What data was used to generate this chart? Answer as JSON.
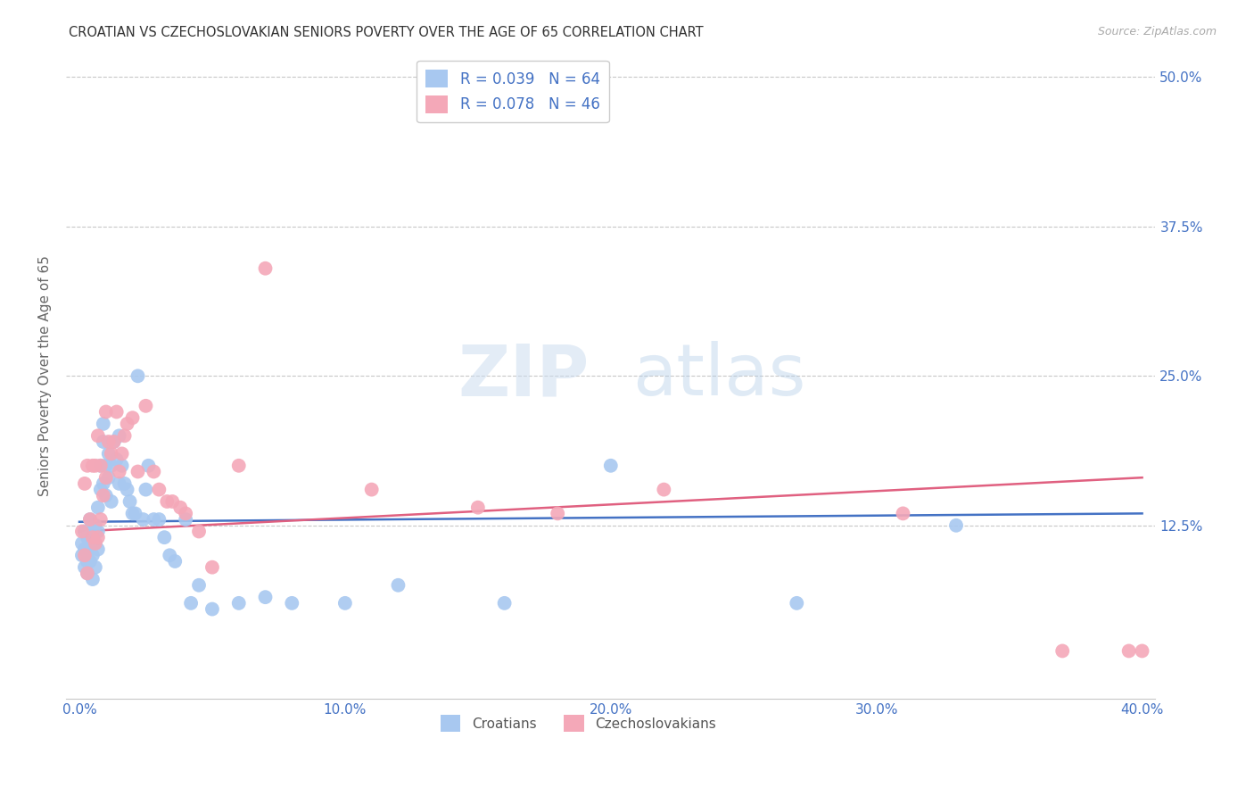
{
  "title": "CROATIAN VS CZECHOSLOVAKIAN SENIORS POVERTY OVER THE AGE OF 65 CORRELATION CHART",
  "source": "Source: ZipAtlas.com",
  "ylabel": "Seniors Poverty Over the Age of 65",
  "xlabel_ticks": [
    "0.0%",
    "10.0%",
    "20.0%",
    "30.0%",
    "40.0%"
  ],
  "xlabel_vals": [
    0.0,
    0.1,
    0.2,
    0.3,
    0.4
  ],
  "ytick_labels": [
    "12.5%",
    "25.0%",
    "37.5%",
    "50.0%"
  ],
  "ytick_vals": [
    0.125,
    0.25,
    0.375,
    0.5
  ],
  "xlim": [
    -0.005,
    0.405
  ],
  "ylim": [
    -0.02,
    0.52
  ],
  "croatian_R": 0.039,
  "croatian_N": 64,
  "czechoslovakian_R": 0.078,
  "czechoslovakian_N": 46,
  "croatian_color": "#a8c8f0",
  "czechoslovakian_color": "#f4a8b8",
  "croatian_line_color": "#4472c4",
  "czechoslovakian_line_color": "#e06080",
  "background_color": "#ffffff",
  "grid_color": "#c8c8c8",
  "label_color": "#4472c4",
  "cr_trend_start": 0.128,
  "cr_trend_end": 0.135,
  "cz_trend_start": 0.12,
  "cz_trend_end": 0.165,
  "croatians_x": [
    0.001,
    0.001,
    0.002,
    0.002,
    0.002,
    0.003,
    0.003,
    0.003,
    0.004,
    0.004,
    0.004,
    0.004,
    0.005,
    0.005,
    0.005,
    0.006,
    0.006,
    0.006,
    0.007,
    0.007,
    0.007,
    0.008,
    0.008,
    0.009,
    0.009,
    0.009,
    0.01,
    0.01,
    0.011,
    0.011,
    0.012,
    0.012,
    0.013,
    0.014,
    0.015,
    0.015,
    0.016,
    0.017,
    0.018,
    0.019,
    0.02,
    0.021,
    0.022,
    0.024,
    0.025,
    0.026,
    0.028,
    0.03,
    0.032,
    0.034,
    0.036,
    0.04,
    0.042,
    0.045,
    0.05,
    0.06,
    0.07,
    0.08,
    0.1,
    0.12,
    0.16,
    0.2,
    0.27,
    0.33
  ],
  "croatians_y": [
    0.1,
    0.11,
    0.09,
    0.105,
    0.12,
    0.085,
    0.095,
    0.115,
    0.095,
    0.105,
    0.115,
    0.13,
    0.08,
    0.1,
    0.12,
    0.09,
    0.11,
    0.125,
    0.105,
    0.12,
    0.14,
    0.155,
    0.175,
    0.16,
    0.195,
    0.21,
    0.15,
    0.175,
    0.165,
    0.185,
    0.145,
    0.175,
    0.195,
    0.18,
    0.16,
    0.2,
    0.175,
    0.16,
    0.155,
    0.145,
    0.135,
    0.135,
    0.25,
    0.13,
    0.155,
    0.175,
    0.13,
    0.13,
    0.115,
    0.1,
    0.095,
    0.13,
    0.06,
    0.075,
    0.055,
    0.06,
    0.065,
    0.06,
    0.06,
    0.075,
    0.06,
    0.175,
    0.06,
    0.125
  ],
  "czechoslovakians_x": [
    0.001,
    0.002,
    0.002,
    0.003,
    0.003,
    0.004,
    0.005,
    0.005,
    0.006,
    0.006,
    0.007,
    0.007,
    0.008,
    0.008,
    0.009,
    0.01,
    0.01,
    0.011,
    0.012,
    0.013,
    0.014,
    0.015,
    0.016,
    0.017,
    0.018,
    0.02,
    0.022,
    0.025,
    0.028,
    0.03,
    0.033,
    0.035,
    0.038,
    0.04,
    0.045,
    0.05,
    0.06,
    0.07,
    0.11,
    0.15,
    0.18,
    0.22,
    0.31,
    0.37,
    0.395,
    0.4
  ],
  "czechoslovakians_y": [
    0.12,
    0.1,
    0.16,
    0.085,
    0.175,
    0.13,
    0.115,
    0.175,
    0.11,
    0.175,
    0.115,
    0.2,
    0.13,
    0.175,
    0.15,
    0.165,
    0.22,
    0.195,
    0.185,
    0.195,
    0.22,
    0.17,
    0.185,
    0.2,
    0.21,
    0.215,
    0.17,
    0.225,
    0.17,
    0.155,
    0.145,
    0.145,
    0.14,
    0.135,
    0.12,
    0.09,
    0.175,
    0.34,
    0.155,
    0.14,
    0.135,
    0.155,
    0.135,
    0.02,
    0.02,
    0.02
  ]
}
